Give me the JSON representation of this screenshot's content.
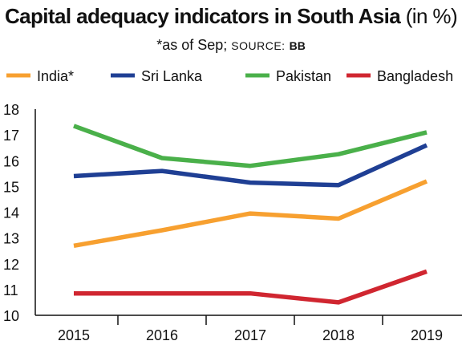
{
  "title": {
    "main": "Capital adequacy indicators in South Asia",
    "unit": "(in %)"
  },
  "subtitle": {
    "note": "*as of Sep;",
    "source_label": "SOURCE:",
    "source_value": "BB"
  },
  "chart_data": {
    "type": "line",
    "categories": [
      "2015",
      "2016",
      "2017",
      "2018",
      "2019"
    ],
    "ylim": [
      10,
      18
    ],
    "yticks": [
      10,
      11,
      12,
      13,
      14,
      15,
      16,
      17,
      18
    ],
    "grid": false,
    "legend_placement": "top",
    "series": [
      {
        "name": "India*",
        "color": "#f7a030",
        "values": [
          12.7,
          13.3,
          13.95,
          13.75,
          15.2
        ]
      },
      {
        "name": "Sri Lanka",
        "color": "#1f3f94",
        "values": [
          15.4,
          15.6,
          15.15,
          15.05,
          16.6
        ]
      },
      {
        "name": "Pakistan",
        "color": "#4ab04a",
        "values": [
          17.35,
          16.1,
          15.8,
          16.25,
          17.1
        ]
      },
      {
        "name": "Bangladesh",
        "color": "#d02630",
        "values": [
          10.85,
          10.85,
          10.85,
          10.5,
          11.7
        ]
      }
    ]
  }
}
